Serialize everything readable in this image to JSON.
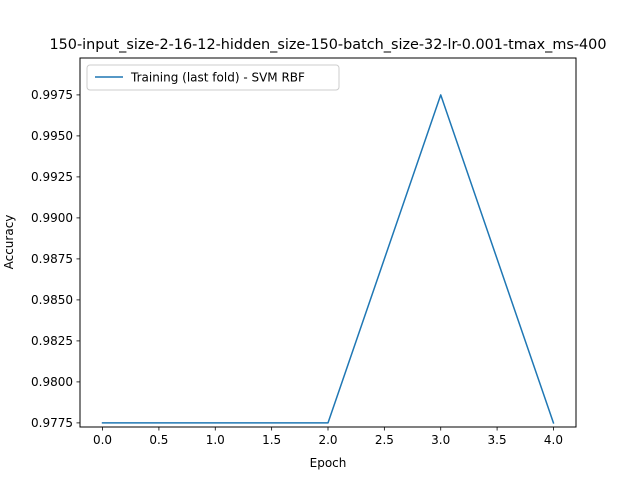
{
  "chart_data": {
    "type": "line",
    "title": "150-input_size-2-16-12-hidden_size-150-batch_size-32-lr-0.001-tmax_ms-400",
    "xlabel": "Epoch",
    "ylabel": "Accuracy",
    "xlim": [
      -0.2,
      4.2
    ],
    "ylim": [
      0.97725,
      0.99975
    ],
    "xticks": [
      0.0,
      0.5,
      1.0,
      1.5,
      2.0,
      2.5,
      3.0,
      3.5,
      4.0
    ],
    "xtick_labels": [
      "0.0",
      "0.5",
      "1.0",
      "1.5",
      "2.0",
      "2.5",
      "3.0",
      "3.5",
      "4.0"
    ],
    "yticks": [
      0.9775,
      0.98,
      0.9825,
      0.985,
      0.9875,
      0.99,
      0.9925,
      0.995,
      0.9975
    ],
    "ytick_labels": [
      "0.9775",
      "0.9800",
      "0.9825",
      "0.9850",
      "0.9875",
      "0.9900",
      "0.9925",
      "0.9950",
      "0.9975"
    ],
    "grid": false,
    "legend_position": "top-left",
    "x": [
      0,
      1,
      2,
      3,
      4
    ],
    "series": [
      {
        "name": "Training (last fold) - SVM RBF",
        "values": [
          0.9775,
          0.9775,
          0.9775,
          0.9975,
          0.9775
        ],
        "color": "#1f77b4"
      }
    ]
  }
}
